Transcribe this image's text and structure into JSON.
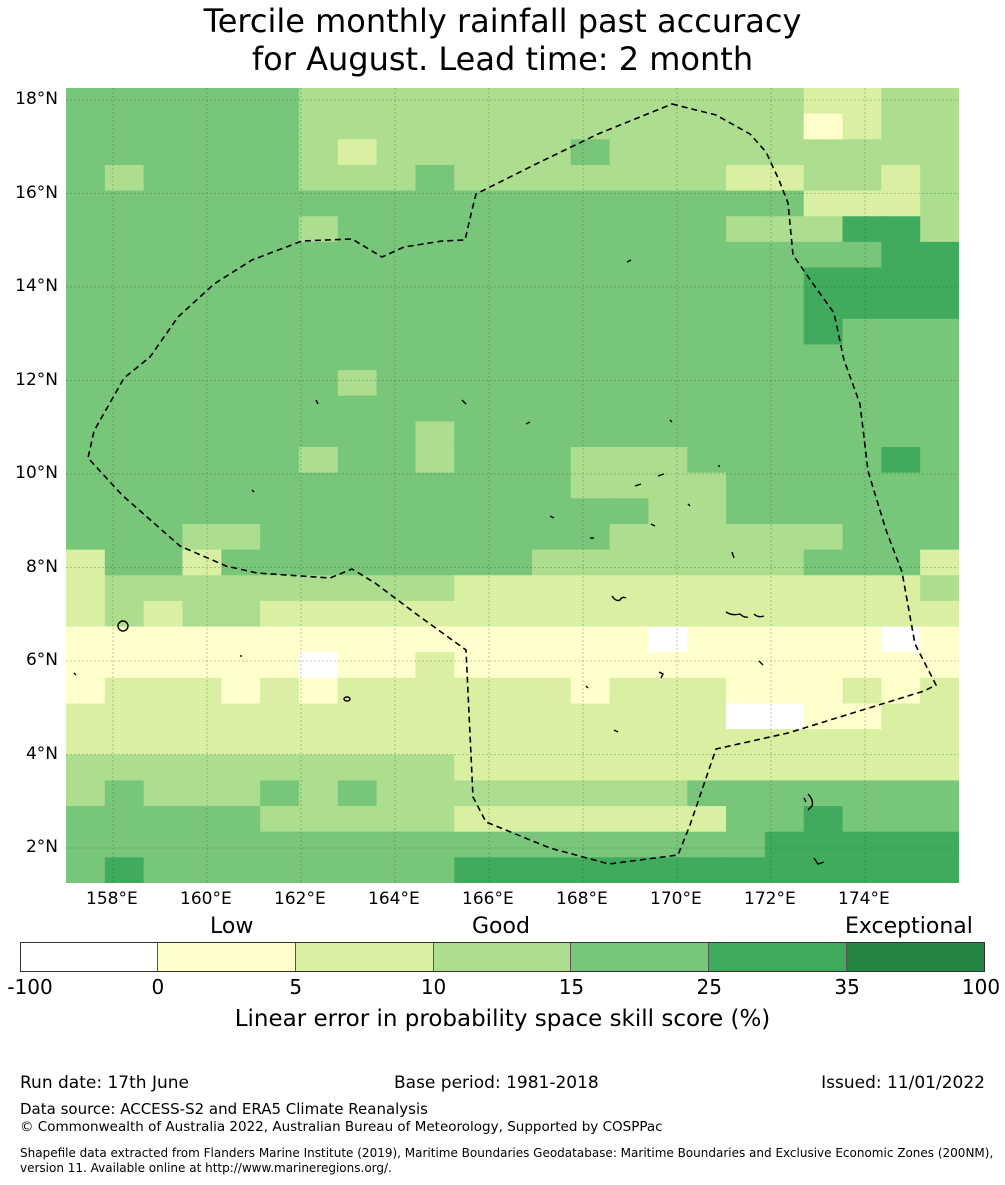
{
  "title": {
    "line1": "Tercile monthly rainfall past accuracy",
    "line2": "for August. Lead time: 2 month"
  },
  "map": {
    "lon_labels": [
      "158°E",
      "160°E",
      "162°E",
      "164°E",
      "166°E",
      "168°E",
      "170°E",
      "172°E",
      "174°E"
    ],
    "lat_labels": [
      "18°N",
      "16°N",
      "14°N",
      "12°N",
      "10°N",
      "8°N",
      "6°N",
      "4°N",
      "2°N"
    ],
    "grid_cols": 23,
    "grid_rows": 31,
    "class_colors": [
      "#ffffff",
      "#ffffcc",
      "#d9f0a3",
      "#addd8e",
      "#78c679",
      "#41ab5d",
      "#238443"
    ],
    "grid": [
      "44444433333333333332233",
      "44444433333333333331233",
      "44444432333334333333333",
      "43444433343333333223323",
      "44444444444444444442223",
      "44444434444444444333553",
      "44444444444444444444455",
      "44444444444444444445555",
      "44444444444444444445555",
      "44444444444444444445444",
      "44444444444444444444444",
      "44444443444444444444444",
      "44444444444444444444444",
      "44444444434444444444444",
      "44444434434443334444454",
      "44444444444443333444444",
      "44444444444444433444444",
      "44433444444444333333444",
      "24424444444433333334442",
      "23333333332222222222223",
      "23233222222222222222222",
      "11111111111111101111101",
      "11111101121111111111111",
      "12221212222221222111212",
      "22222222222222222001122",
      "22222222222222222222222",
      "33333333332222222222222",
      "34333434333333334444444",
      "44444333332222222445444",
      "44444444444444444455555",
      "45444444445555555555555"
    ],
    "legend_note": ""
  },
  "colorbar": {
    "low_label": "Low",
    "good_label": "Good",
    "exceptional_label": "Exceptional",
    "ticks": [
      "-100",
      "0",
      "5",
      "10",
      "15",
      "25",
      "35",
      "100"
    ],
    "colors": [
      "#ffffff",
      "#ffffcc",
      "#d9f0a3",
      "#addd8e",
      "#78c679",
      "#41ab5d",
      "#238443"
    ],
    "caption": "Linear error in probability space skill score (%)"
  },
  "footer": {
    "run_date": "Run date: 17th June",
    "base_period": "Base period: 1981-2018",
    "issued": "Issued: 11/01/2022",
    "data_source": "Data source: ACCESS-S2 and ERA5 Climate Reanalysis",
    "copyright": "© Commonwealth of Australia 2022, Australian Bureau of Meteorology, Supported by COSPPac",
    "shapefile_line1": "Shapefile data extracted from Flanders Marine Institute (2019), Maritime Boundaries Geodatabase: Maritime Boundaries and Exclusive Economic Zones (200NM),",
    "shapefile_line2": "version 11. Available online at http://www.marineregions.org/."
  }
}
